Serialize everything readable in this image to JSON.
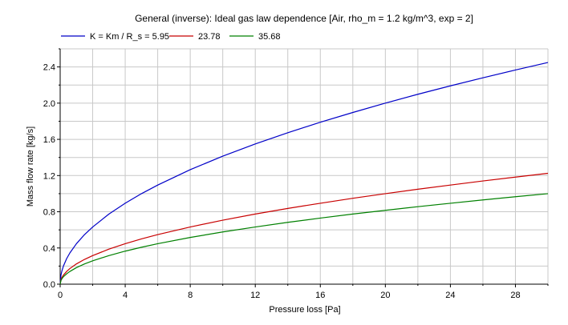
{
  "chart_data": {
    "type": "line",
    "title": "General (inverse): Ideal gas law dependence [Air, rho_m = 1.2 kg/m^3, exp = 2]",
    "xlabel": "Pressure loss [Pa]",
    "ylabel": "Mass flow rate [kg/s]",
    "xlim": [
      0,
      30
    ],
    "ylim": [
      0,
      2.6
    ],
    "x_ticks": [
      0,
      4,
      8,
      12,
      16,
      20,
      24,
      28
    ],
    "x_tick_labels": [
      "0",
      "4",
      "8",
      "12",
      "16",
      "20",
      "24",
      "28"
    ],
    "y_ticks": [
      0,
      0.4,
      0.8,
      1.2,
      1.6,
      2.0,
      2.4
    ],
    "y_tick_labels": [
      "0.0",
      "0.4",
      "0.8",
      "1.2",
      "1.6",
      "2.0",
      "2.4"
    ],
    "grid": true,
    "legend_position": "top-left",
    "x": [
      0,
      0.05,
      0.1,
      0.2,
      0.4,
      0.6,
      1,
      1.5,
      2,
      3,
      4,
      5,
      6,
      8,
      10,
      12,
      14,
      16,
      18,
      20,
      22,
      24,
      26,
      28,
      30
    ],
    "series": [
      {
        "name": "K = Km / R_s = 5.95",
        "color": "#0000c8",
        "values": [
          0,
          0.1,
          0.142,
          0.2,
          0.283,
          0.346,
          0.447,
          0.548,
          0.632,
          0.775,
          0.894,
          1.0,
          1.095,
          1.265,
          1.414,
          1.549,
          1.673,
          1.789,
          1.897,
          2.0,
          2.098,
          2.191,
          2.28,
          2.366,
          2.449
        ]
      },
      {
        "name": "23.78",
        "color": "#c80000",
        "values": [
          0,
          0.05,
          0.071,
          0.1,
          0.141,
          0.173,
          0.224,
          0.274,
          0.316,
          0.387,
          0.447,
          0.5,
          0.548,
          0.632,
          0.707,
          0.775,
          0.837,
          0.894,
          0.949,
          1.0,
          1.049,
          1.095,
          1.14,
          1.183,
          1.225
        ]
      },
      {
        "name": "35.68",
        "color": "#008000",
        "values": [
          0,
          0.041,
          0.058,
          0.082,
          0.115,
          0.141,
          0.183,
          0.224,
          0.258,
          0.316,
          0.365,
          0.408,
          0.447,
          0.516,
          0.577,
          0.632,
          0.683,
          0.73,
          0.775,
          0.816,
          0.856,
          0.894,
          0.931,
          0.966,
          1.0
        ]
      }
    ]
  }
}
